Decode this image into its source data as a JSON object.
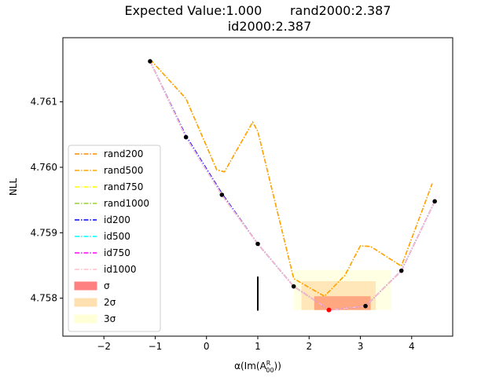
{
  "chart_data": {
    "type": "line",
    "title_line1": "Expected Value:1.000       rand2000:2.387",
    "title_line2": "id2000:2.387",
    "xlabel": "α(Im(A",
    "xlabel_sup": "R",
    "xlabel_sub": "00",
    "xlabel_end": "))",
    "ylabel": "NLL",
    "xlim": [
      -2.8,
      4.8
    ],
    "ylim": [
      4.75742,
      4.76198
    ],
    "xticks": [
      -2,
      -1,
      0,
      1,
      2,
      3,
      4
    ],
    "xtick_labels": [
      "−2",
      "−1",
      "0",
      "1",
      "2",
      "3",
      "4"
    ],
    "yticks": [
      4.758,
      4.759,
      4.76,
      4.761
    ],
    "ytick_labels": [
      "4.758",
      "4.759",
      "4.760",
      "4.761"
    ],
    "grid": false,
    "legend_position": "lower-left",
    "series": [
      {
        "name": "rand200",
        "color": "#ff8c00",
        "x": [
          -1.1,
          -0.4,
          0.2,
          0.35,
          0.9,
          1.0,
          1.7,
          2.3,
          2.7,
          3.0,
          3.2,
          3.8,
          4.4
        ],
        "y": [
          4.76165,
          4.76105,
          4.75996,
          4.75993,
          4.76069,
          4.76055,
          4.7583,
          4.75803,
          4.75835,
          4.7588,
          4.75879,
          4.75849,
          4.75975
        ]
      },
      {
        "name": "rand500",
        "color": "#ffa500",
        "x": [
          -1.1,
          -0.4,
          0.2,
          0.35,
          0.9,
          1.0,
          1.7,
          2.3,
          2.7,
          3.0,
          3.2,
          3.8,
          4.4
        ],
        "y": [
          4.76165,
          4.76105,
          4.75996,
          4.75993,
          4.76069,
          4.76055,
          4.7583,
          4.75803,
          4.75835,
          4.7588,
          4.75879,
          4.75849,
          4.75975
        ]
      },
      {
        "name": "rand750",
        "color": "#ffff00",
        "x": [
          -1.1,
          -0.4,
          0.3,
          1.0,
          1.7,
          2.4,
          3.1,
          3.8,
          4.45
        ],
        "y": [
          4.76162,
          4.76046,
          4.75958,
          4.75883,
          4.75818,
          4.75782,
          4.75788,
          4.75842,
          4.75948
        ]
      },
      {
        "name": "rand1000",
        "color": "#9acd32",
        "x": [
          -1.1,
          -0.4,
          0.3,
          1.0,
          1.7,
          2.4,
          3.1,
          3.8,
          4.45
        ],
        "y": [
          4.76162,
          4.76046,
          4.75958,
          4.75883,
          4.75818,
          4.75782,
          4.75788,
          4.75842,
          4.75948
        ]
      },
      {
        "name": "id200",
        "color": "#0000ff",
        "x": [
          -1.1,
          -0.4,
          0.3,
          1.0,
          1.7,
          2.4,
          3.1,
          3.8,
          4.45
        ],
        "y": [
          4.76162,
          4.76048,
          4.7596,
          4.75883,
          4.75818,
          4.75782,
          4.75788,
          4.75842,
          4.75948
        ]
      },
      {
        "name": "id500",
        "color": "#00ffff",
        "x": [
          -1.1,
          -0.4,
          0.3,
          1.0,
          1.7,
          2.4,
          3.1,
          3.8,
          4.45
        ],
        "y": [
          4.76162,
          4.76046,
          4.75958,
          4.75883,
          4.75818,
          4.75782,
          4.75788,
          4.75842,
          4.75948
        ]
      },
      {
        "name": "id750",
        "color": "#ff00ff",
        "x": [
          -1.1,
          -0.4,
          0.3,
          1.0,
          1.7,
          2.4,
          3.1,
          3.8,
          4.45
        ],
        "y": [
          4.76162,
          4.76046,
          4.75958,
          4.75883,
          4.75818,
          4.75782,
          4.75788,
          4.75842,
          4.75948
        ]
      },
      {
        "name": "id1000",
        "color": "#ffc0cb",
        "x": [
          -1.1,
          -0.4,
          0.3,
          1.0,
          1.7,
          2.4,
          3.1,
          3.8,
          4.45
        ],
        "y": [
          4.76162,
          4.76046,
          4.75958,
          4.75883,
          4.75818,
          4.75782,
          4.75788,
          4.75842,
          4.75948
        ]
      }
    ],
    "markers": {
      "x": [
        -1.1,
        -0.4,
        0.3,
        1.0,
        1.7,
        3.1,
        3.8,
        4.45
      ],
      "y": [
        4.76162,
        4.76046,
        4.75958,
        4.75883,
        4.75818,
        4.75788,
        4.75842,
        4.75948
      ],
      "color": "#000000"
    },
    "minimum": {
      "x": 2.387,
      "y": 4.75782,
      "color": "#ff0000"
    },
    "expected_line": {
      "x": 1.0,
      "y_range": [
        4.75781,
        4.75833
      ],
      "color": "#000000"
    },
    "bands": [
      {
        "name": "3σ",
        "label_html": "3σ",
        "x": [
          1.7,
          3.6
        ],
        "y": [
          4.75782,
          4.75843
        ],
        "color": "#ffffe0"
      },
      {
        "name": "2σ",
        "label_html": "2σ",
        "x": [
          1.85,
          3.3
        ],
        "y": [
          4.75782,
          4.75826
        ],
        "color": "#ffe4b5"
      },
      {
        "name": "σ",
        "label_html": "σ",
        "x": [
          2.1,
          3.2
        ],
        "y": [
          4.75782,
          4.75803
        ],
        "color": "#ffa07a"
      }
    ],
    "legend_entries": [
      {
        "label": "rand200",
        "kind": "line",
        "color": "#ff8c00"
      },
      {
        "label": "rand500",
        "kind": "line",
        "color": "#ffa500"
      },
      {
        "label": "rand750",
        "kind": "line",
        "color": "#ffff00"
      },
      {
        "label": "rand1000",
        "kind": "line",
        "color": "#9acd32"
      },
      {
        "label": "id200",
        "kind": "line",
        "color": "#0000ff"
      },
      {
        "label": "id500",
        "kind": "line",
        "color": "#00ffff"
      },
      {
        "label": "id750",
        "kind": "line",
        "color": "#ff00ff"
      },
      {
        "label": "id1000",
        "kind": "line",
        "color": "#ffc0cb"
      },
      {
        "label": "σ",
        "kind": "patch",
        "color": "#ff8080"
      },
      {
        "label": "2σ",
        "kind": "patch",
        "color": "#ffe0b0"
      },
      {
        "label": "3σ",
        "kind": "patch",
        "color": "#ffffd8"
      }
    ]
  }
}
